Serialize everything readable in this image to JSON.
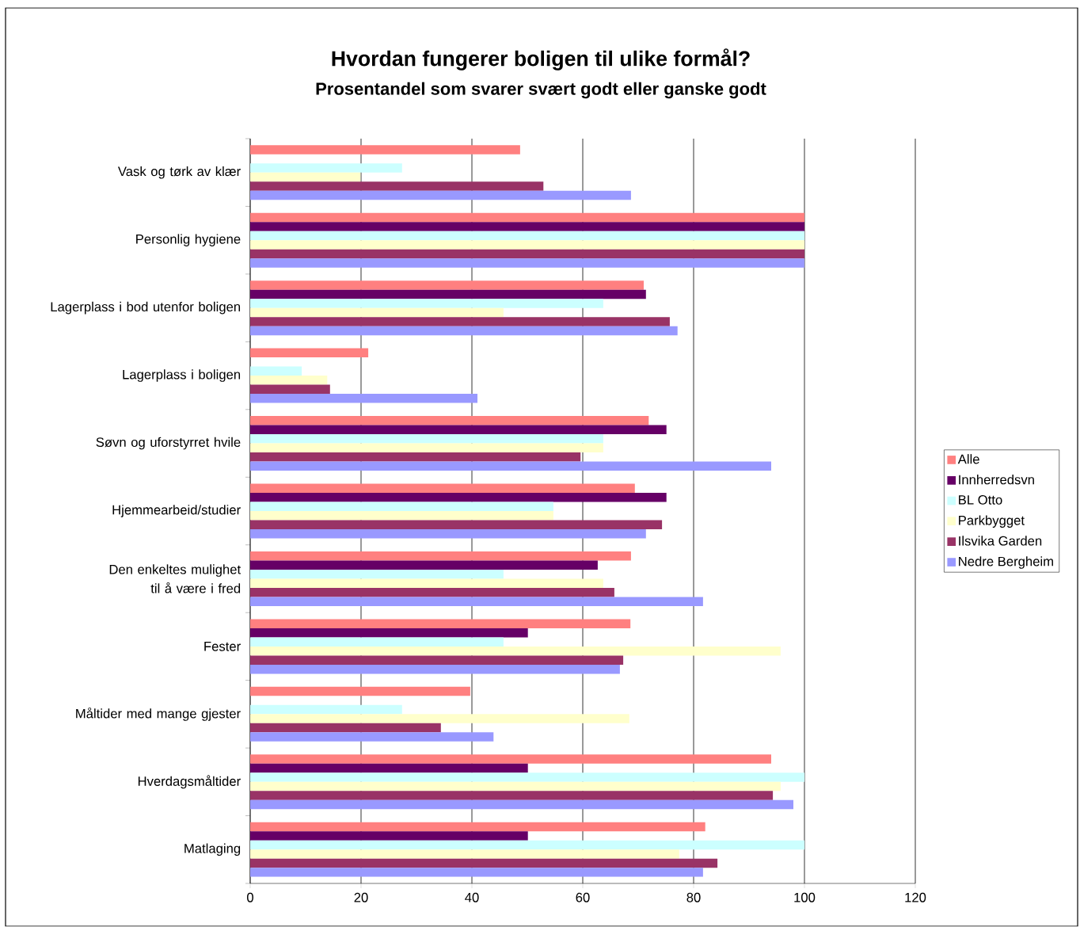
{
  "chart_data": {
    "type": "bar",
    "orientation": "horizontal",
    "title": "Hvordan fungerer boligen til ulike formål?",
    "subtitle": "Prosentandel som svarer svært godt eller ganske godt",
    "categories": [
      "Vask og tørk av klær",
      "Personlig hygiene",
      "Lagerplass i bod utenfor boligen",
      "Lagerplass i boligen",
      "Søvn og uforstyrret hvile",
      "Hjemmearbeid/studier",
      "Den enkeltes mulighet til å være i fred",
      "Fester",
      "Måltider med mange gjester",
      "Hverdagsmåltider",
      "Matlaging"
    ],
    "series": [
      {
        "name": "Alle",
        "color": "#ff8080",
        "values": [
          48.7,
          100,
          71,
          21.3,
          71.9,
          69.4,
          68.7,
          68.6,
          39.7,
          94,
          82.1
        ]
      },
      {
        "name": "Innherredsvn",
        "color": "#660066",
        "values": [
          null,
          100,
          71.4,
          null,
          75.1,
          75.1,
          62.7,
          50.1,
          null,
          50.1,
          50.1
        ]
      },
      {
        "name": "BL Otto",
        "color": "#ccffff",
        "values": [
          27.4,
          100,
          63.7,
          9.3,
          63.7,
          54.7,
          45.7,
          45.7,
          27.4,
          100,
          100
        ]
      },
      {
        "name": "Parkbygget",
        "color": "#ffffcc",
        "values": [
          19.9,
          100,
          45.7,
          13.9,
          63.7,
          54.7,
          63.7,
          95.7,
          68.4,
          95.7,
          77.4
        ]
      },
      {
        "name": "Ilsvika Garden",
        "color": "#993366",
        "values": [
          52.9,
          100,
          75.7,
          14.4,
          59.6,
          74.3,
          65.7,
          67.3,
          34.4,
          94.3,
          84.3
        ]
      },
      {
        "name": "Nedre Bergheim",
        "color": "#9999ff",
        "values": [
          68.7,
          100,
          77.1,
          41,
          94,
          71.4,
          81.7,
          66.7,
          43.9,
          98,
          81.7
        ]
      }
    ],
    "xlim": [
      0,
      120
    ],
    "xticks": [
      0,
      20,
      40,
      60,
      80,
      100,
      120
    ],
    "grid": "x",
    "legend": "right"
  }
}
